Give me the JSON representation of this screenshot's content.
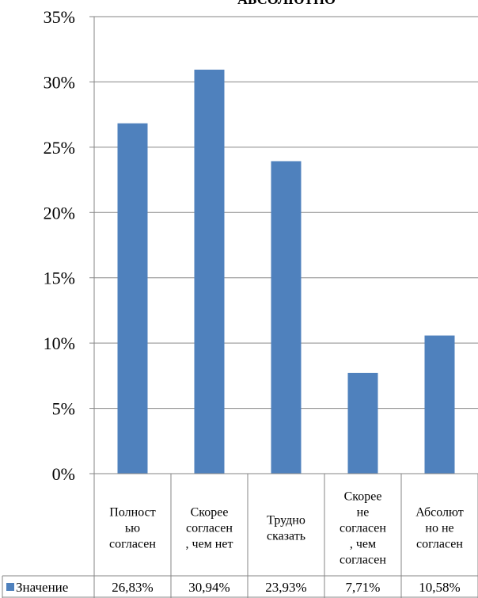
{
  "chart_data": {
    "type": "bar",
    "title": "АБСОЛЮТНО",
    "categories": [
      [
        "Полност",
        "ью",
        "согласен"
      ],
      [
        "Скорее",
        "согласен",
        ", чем нет"
      ],
      [
        "Трудно",
        "сказать"
      ],
      [
        "Скорее",
        "не",
        "согласен",
        ", чем",
        "согласен"
      ],
      [
        "Абсолют",
        "но не",
        "согласен"
      ]
    ],
    "series": [
      {
        "name": "Значение",
        "values": [
          26.83,
          30.94,
          23.93,
          7.71,
          10.58
        ],
        "value_labels": [
          "26,83%",
          "30,94%",
          "23,93%",
          "7,71%",
          "10,58%"
        ],
        "color": "#4f81bd"
      }
    ],
    "ylim": [
      0,
      35
    ],
    "yticks": [
      0,
      5,
      10,
      15,
      20,
      25,
      30,
      35
    ],
    "ytick_labels": [
      "0%",
      "5%",
      "10%",
      "15%",
      "20%",
      "25%",
      "30%",
      "35%"
    ],
    "grid": true,
    "legend": "data-table-left"
  }
}
